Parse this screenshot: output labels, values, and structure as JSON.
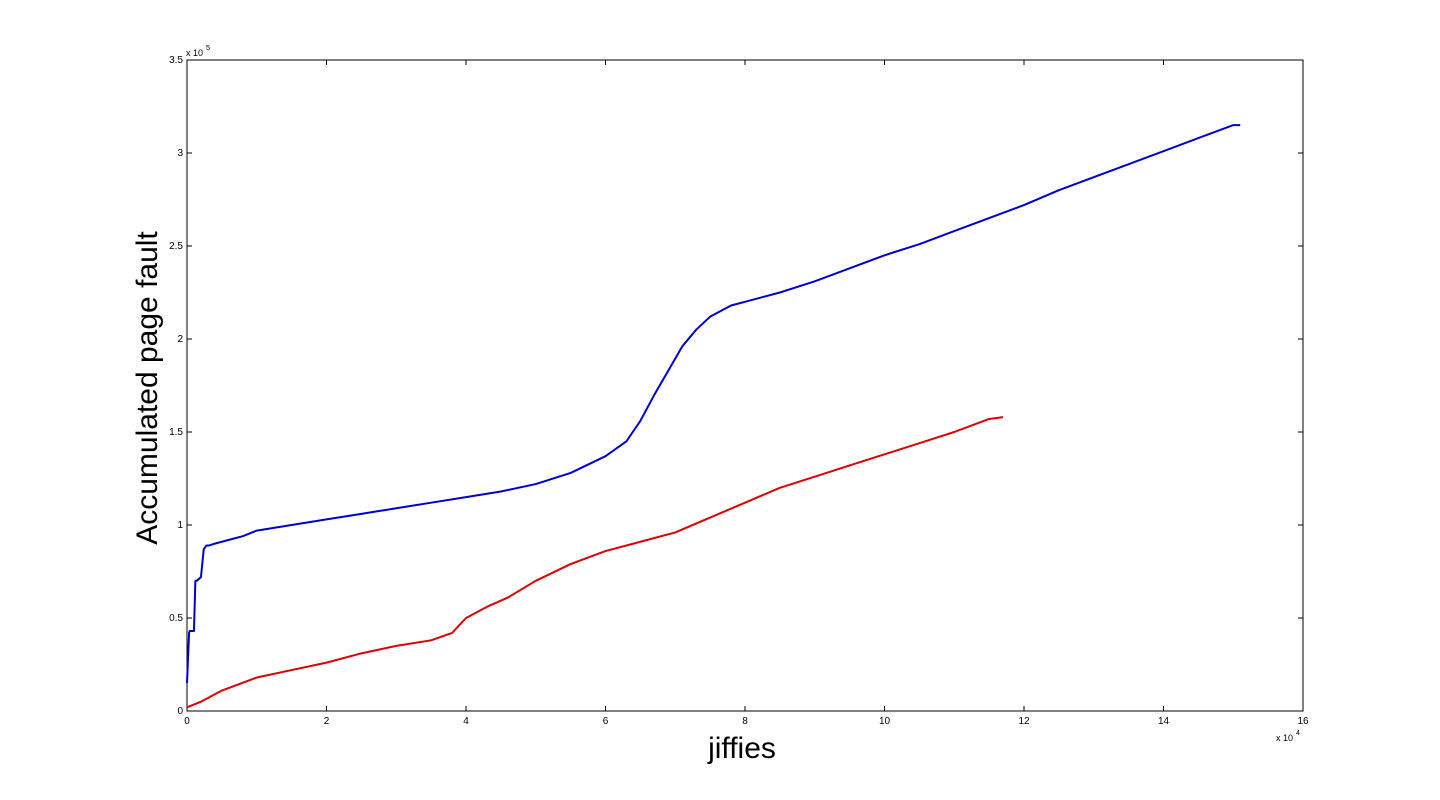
{
  "chart_data": {
    "type": "line",
    "title": "",
    "xlabel": "jiffies",
    "ylabel": "Accumulated page fault",
    "x_exponent_label": "x 10",
    "x_exponent_power": "4",
    "y_exponent_label": "x 10",
    "y_exponent_power": "5",
    "xlim": [
      0,
      16
    ],
    "ylim": [
      0,
      3.5
    ],
    "x_ticks": [
      "0",
      "2",
      "4",
      "6",
      "8",
      "10",
      "12",
      "14",
      "16"
    ],
    "y_ticks": [
      "0",
      "0.5",
      "1",
      "1.5",
      "2",
      "2.5",
      "3",
      "3.5"
    ],
    "grid": false,
    "series": [
      {
        "color": "#0000cc",
        "x": [
          0,
          0.03,
          0.04,
          0.1,
          0.12,
          0.14,
          0.2,
          0.24,
          0.28,
          0.32,
          0.4,
          0.5,
          0.6,
          0.8,
          1.0,
          1.5,
          2.0,
          2.5,
          3.0,
          3.5,
          4.0,
          4.5,
          5.0,
          5.5,
          6.0,
          6.3,
          6.5,
          6.7,
          6.9,
          7.1,
          7.3,
          7.5,
          7.8,
          8.0,
          8.5,
          9.0,
          9.5,
          10.0,
          10.5,
          11.0,
          11.5,
          12.0,
          12.5,
          13.0,
          13.5,
          14.0,
          14.5,
          15.0,
          15.1
        ],
        "y": [
          0.15,
          0.42,
          0.43,
          0.43,
          0.7,
          0.7,
          0.72,
          0.87,
          0.89,
          0.89,
          0.9,
          0.91,
          0.92,
          0.94,
          0.97,
          1.0,
          1.03,
          1.06,
          1.09,
          1.12,
          1.15,
          1.18,
          1.22,
          1.28,
          1.37,
          1.45,
          1.56,
          1.7,
          1.83,
          1.96,
          2.05,
          2.12,
          2.18,
          2.2,
          2.25,
          2.31,
          2.38,
          2.45,
          2.51,
          2.58,
          2.65,
          2.72,
          2.8,
          2.87,
          2.94,
          3.01,
          3.08,
          3.15,
          3.15
        ]
      },
      {
        "color": "#dd0000",
        "x": [
          0,
          0.2,
          0.5,
          1.0,
          1.5,
          2.0,
          2.5,
          3.0,
          3.5,
          3.8,
          4.0,
          4.3,
          4.6,
          5.0,
          5.5,
          6.0,
          6.5,
          7.0,
          7.5,
          8.0,
          8.5,
          9.0,
          9.5,
          10.0,
          10.5,
          11.0,
          11.5,
          11.7
        ],
        "y": [
          0.02,
          0.05,
          0.11,
          0.18,
          0.22,
          0.26,
          0.31,
          0.35,
          0.38,
          0.42,
          0.5,
          0.56,
          0.61,
          0.7,
          0.79,
          0.86,
          0.91,
          0.96,
          1.04,
          1.12,
          1.2,
          1.26,
          1.32,
          1.38,
          1.44,
          1.5,
          1.57,
          1.58
        ]
      }
    ]
  }
}
